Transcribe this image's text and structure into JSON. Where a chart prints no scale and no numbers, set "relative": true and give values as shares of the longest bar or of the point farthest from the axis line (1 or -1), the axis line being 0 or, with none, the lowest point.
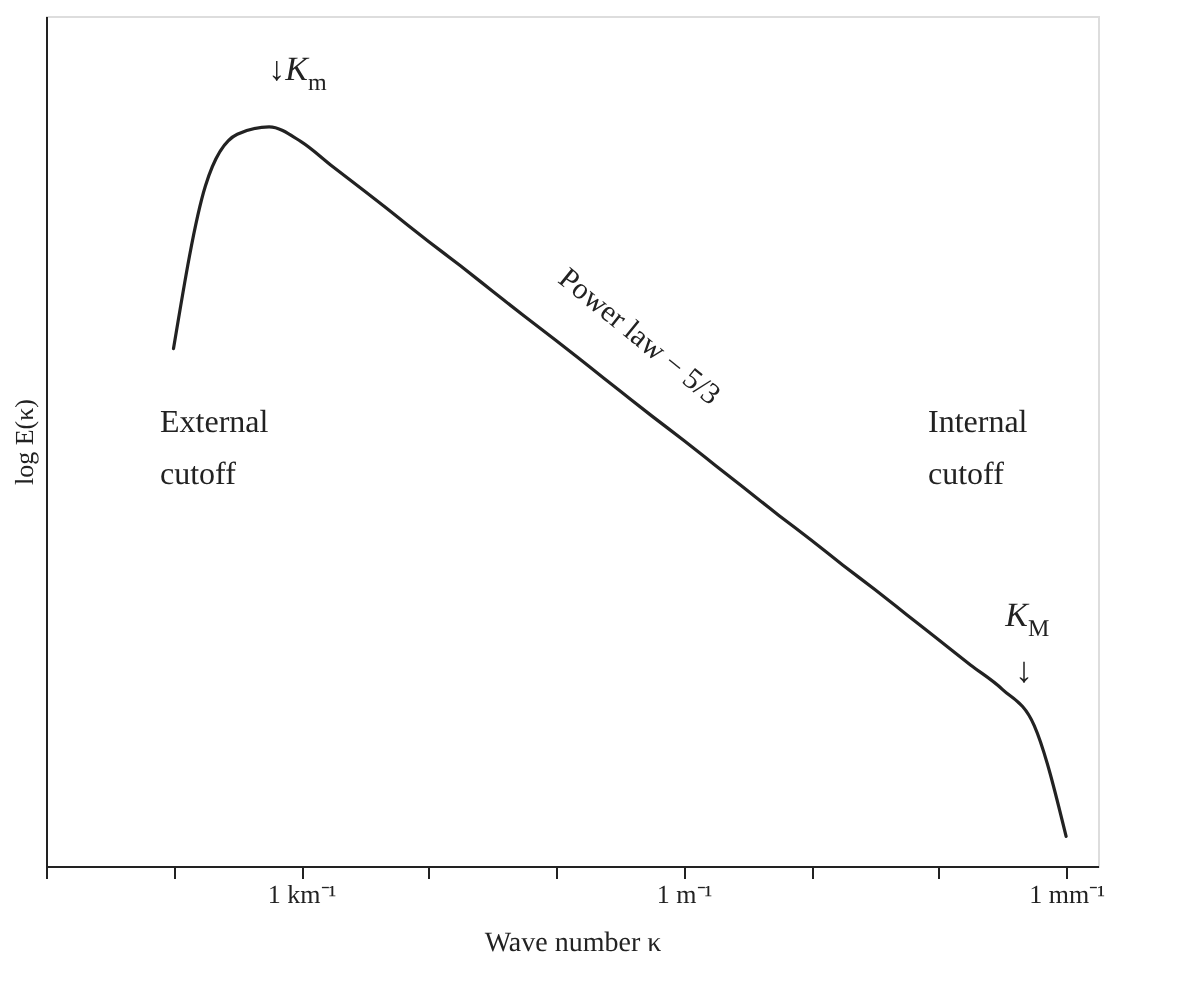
{
  "chart_data": {
    "type": "line",
    "relative": true,
    "xlabel": "Wave number κ",
    "ylabel": "log E(κ)",
    "categories": [
      null,
      null,
      null,
      null,
      null,
      null,
      null,
      null,
      "1 km⁻¹",
      null,
      null,
      null,
      null,
      null,
      null,
      null,
      null,
      null,
      null,
      null,
      "1 m⁻¹",
      null,
      null,
      null,
      null,
      null,
      null,
      null,
      null,
      null,
      null,
      null,
      "1 mm⁻¹",
      null
    ],
    "series": [
      {
        "color": "#222222",
        "values": [
          null,
          null,
          null,
          null,
          0.7,
          0.92,
          0.99,
          1.0,
          0.98,
          0.946,
          0.913,
          0.879,
          0.845,
          0.812,
          0.778,
          0.744,
          0.711,
          0.677,
          0.643,
          0.609,
          0.576,
          0.542,
          0.508,
          0.474,
          0.441,
          0.407,
          0.374,
          0.34,
          0.306,
          0.272,
          0.239,
          0.19,
          0.04,
          null
        ]
      }
    ],
    "grid": false,
    "marker": "none",
    "line_style": "solid",
    "annotations": [
      "↓K$_{m}$",
      "Power law − 5/3",
      "External\ncutoff",
      "Internal\ncutoff",
      "K$_{M}$",
      "↓"
    ]
  }
}
